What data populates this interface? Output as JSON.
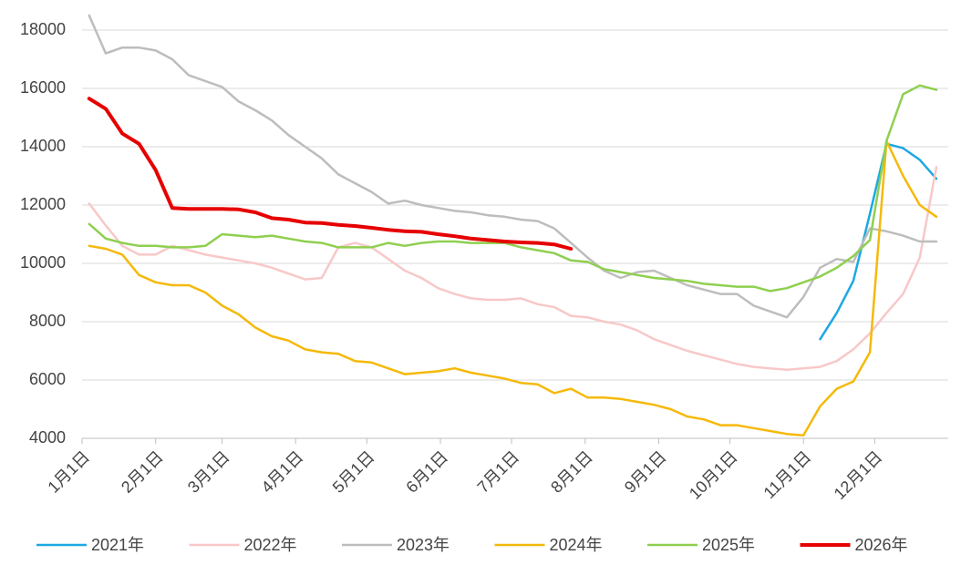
{
  "chart_data": {
    "type": "line",
    "x": [
      3,
      10,
      17,
      24,
      31,
      38,
      45,
      52,
      59,
      66,
      73,
      80,
      87,
      94,
      101,
      108,
      115,
      122,
      129,
      136,
      143,
      150,
      157,
      164,
      171,
      178,
      185,
      192,
      199,
      206,
      213,
      220,
      227,
      234,
      241,
      248,
      255,
      262,
      269,
      276,
      283,
      290,
      297,
      304,
      311,
      318,
      325,
      332,
      339,
      346,
      353,
      360
    ],
    "xlim": [
      0,
      365
    ],
    "xticks": [
      {
        "value": 0,
        "label": "1月1日"
      },
      {
        "value": 31,
        "label": "2月1日"
      },
      {
        "value": 59,
        "label": "3月1日"
      },
      {
        "value": 90,
        "label": "4月1日"
      },
      {
        "value": 120,
        "label": "5月1日"
      },
      {
        "value": 151,
        "label": "6月1日"
      },
      {
        "value": 181,
        "label": "7月1日"
      },
      {
        "value": 212,
        "label": "8月1日"
      },
      {
        "value": 243,
        "label": "9月1日"
      },
      {
        "value": 273,
        "label": "10月1日"
      },
      {
        "value": 304,
        "label": "11月1日"
      },
      {
        "value": 334,
        "label": "12月1日"
      }
    ],
    "ylim": [
      4000,
      18000
    ],
    "yticks": [
      4000,
      6000,
      8000,
      10000,
      12000,
      14000,
      16000,
      18000
    ],
    "grid": true,
    "legend": "bottom",
    "series": [
      {
        "name": "2021年",
        "color": "#1ca8e3",
        "width": 2.5,
        "values": [
          null,
          null,
          null,
          null,
          null,
          null,
          null,
          null,
          null,
          null,
          null,
          null,
          null,
          null,
          null,
          null,
          null,
          null,
          null,
          null,
          null,
          null,
          null,
          null,
          null,
          null,
          null,
          null,
          null,
          null,
          null,
          null,
          null,
          null,
          null,
          null,
          null,
          null,
          null,
          null,
          null,
          null,
          null,
          null,
          7400,
          8300,
          9400,
          11700,
          14100,
          13950,
          13550,
          12900
        ]
      },
      {
        "name": "2022年",
        "color": "#f8c8c8",
        "width": 2.5,
        "values": [
          12050,
          11300,
          10600,
          10300,
          10300,
          10600,
          10450,
          10300,
          10200,
          10100,
          10000,
          9850,
          9650,
          9450,
          9500,
          10550,
          10700,
          10550,
          10150,
          9750,
          9500,
          9150,
          8950,
          8800,
          8750,
          8750,
          8800,
          8600,
          8500,
          8200,
          8150,
          8000,
          7900,
          7700,
          7400,
          7200,
          7000,
          6850,
          6700,
          6550,
          6450,
          6400,
          6350,
          6400,
          6450,
          6650,
          7050,
          7600,
          8300,
          8950,
          10200,
          13300
        ]
      },
      {
        "name": "2023年",
        "color": "#bdbdbd",
        "width": 2.5,
        "values": [
          18500,
          17200,
          17400,
          17400,
          17300,
          17000,
          16450,
          16250,
          16050,
          15550,
          15250,
          14900,
          14400,
          14000,
          13600,
          13050,
          12750,
          12450,
          12050,
          12150,
          12000,
          11900,
          11800,
          11750,
          11650,
          11600,
          11500,
          11450,
          11200,
          10700,
          10200,
          9750,
          9500,
          9700,
          9750,
          9500,
          9250,
          9100,
          8950,
          8950,
          8550,
          8350,
          8150,
          8850,
          9850,
          10150,
          10050,
          11200,
          11100,
          10950,
          10750,
          10750
        ]
      },
      {
        "name": "2024年",
        "color": "#f5b90a",
        "width": 2.5,
        "values": [
          10600,
          10500,
          10300,
          9600,
          9350,
          9250,
          9250,
          9000,
          8550,
          8250,
          7800,
          7500,
          7350,
          7050,
          6950,
          6900,
          6650,
          6600,
          6400,
          6200,
          6250,
          6300,
          6400,
          6250,
          6150,
          6050,
          5900,
          5850,
          5550,
          5700,
          5400,
          5400,
          5350,
          5250,
          5150,
          5000,
          4750,
          4650,
          4450,
          4450,
          4350,
          4250,
          4150,
          4100,
          5100,
          5700,
          5950,
          6950,
          14200,
          13000,
          12000,
          11600
        ]
      },
      {
        "name": "2025年",
        "color": "#8fcf50",
        "width": 2.5,
        "values": [
          11350,
          10850,
          10700,
          10600,
          10600,
          10550,
          10550,
          10600,
          11000,
          10950,
          10900,
          10950,
          10850,
          10750,
          10700,
          10550,
          10550,
          10550,
          10700,
          10600,
          10700,
          10750,
          10750,
          10700,
          10700,
          10700,
          10550,
          10450,
          10350,
          10100,
          10050,
          9800,
          9700,
          9600,
          9500,
          9450,
          9400,
          9300,
          9250,
          9200,
          9200,
          9050,
          9150,
          9350,
          9550,
          9850,
          10250,
          10800,
          14200,
          15800,
          16100,
          15950
        ]
      },
      {
        "name": "2026年",
        "color": "#e60000",
        "width": 4,
        "values": [
          15650,
          15300,
          14450,
          14100,
          13200,
          11900,
          11870,
          11870,
          11870,
          11850,
          11750,
          11550,
          11500,
          11400,
          11380,
          11320,
          11280,
          11220,
          11150,
          11100,
          11080,
          11000,
          10930,
          10850,
          10800,
          10750,
          10720,
          10700,
          10650,
          10500,
          null,
          null,
          null,
          null,
          null,
          null,
          null,
          null,
          null,
          null,
          null,
          null,
          null,
          null,
          null,
          null,
          null,
          null,
          null,
          null,
          null,
          null
        ]
      }
    ]
  }
}
